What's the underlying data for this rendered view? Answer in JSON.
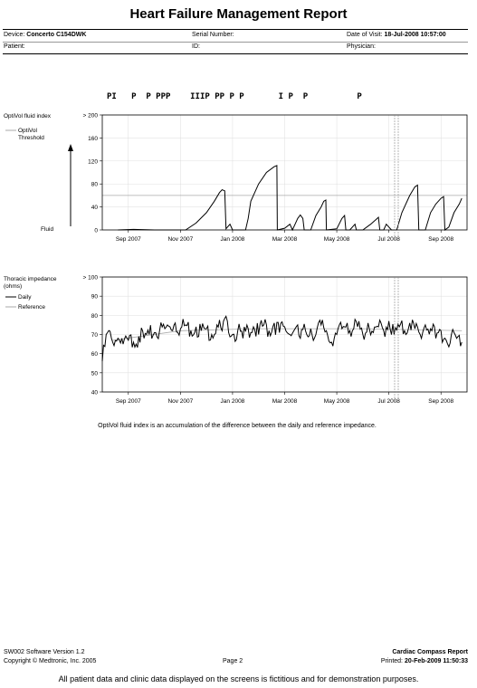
{
  "report": {
    "title": "Heart Failure Management Report",
    "device_label": "Device:",
    "device_value": "Concerto C154DWK",
    "serial_label": "Serial Number:",
    "visit_label": "Date of Visit:",
    "visit_value": "18-Jul-2008  10:57:00",
    "patient_label": "Patient:",
    "id_label": "ID:",
    "physician_label": "Physician:"
  },
  "events_row": "PI   P  P PPP    IIIP PP P P       I P  P          P",
  "footer": {
    "software": "SW002 Software Version 1.2",
    "copyright": "Copyright © Medtronic, Inc. 2005",
    "page": "Page 2",
    "report_name": "Cardiac Compass Report",
    "printed_label": "Printed:",
    "printed_value": "20-Feb-2009 11:50:33",
    "disclaimer": "All patient data and clinic data displayed on the screens is fictitious and for demonstration purposes."
  },
  "caption": "OptiVol fluid index is an accumulation of the difference between the daily and reference impedance.",
  "chart_data": [
    {
      "type": "line",
      "title": "OptiVol fluid index",
      "legend": [
        "OptiVol Threshold"
      ],
      "arrow_label": "Fluid",
      "x_ticks": [
        "Sep 2007",
        "Nov 2007",
        "Jan 2008",
        "Mar 2008",
        "May 2008",
        "Jul 2008",
        "Sep 2008"
      ],
      "y_ticks": [
        "> 200",
        "160",
        "120",
        "80",
        "40",
        "0"
      ],
      "ylim": [
        0,
        200
      ],
      "threshold": 60,
      "series": [
        {
          "points": [
            [
              0.06,
              0
            ],
            [
              0.12,
              1
            ],
            [
              0.2,
              0
            ],
            [
              0.32,
              0
            ],
            [
              0.36,
              12
            ],
            [
              0.4,
              30
            ],
            [
              0.43,
              50
            ],
            [
              0.45,
              65
            ],
            [
              0.46,
              70
            ],
            [
              0.47,
              68
            ],
            [
              0.475,
              2
            ],
            [
              0.49,
              10
            ],
            [
              0.5,
              0
            ],
            [
              0.55,
              0
            ],
            [
              0.56,
              20
            ],
            [
              0.57,
              50
            ],
            [
              0.6,
              80
            ],
            [
              0.63,
              100
            ],
            [
              0.66,
              110
            ],
            [
              0.67,
              112
            ],
            [
              0.672,
              0
            ],
            [
              0.7,
              3
            ],
            [
              0.72,
              10
            ],
            [
              0.73,
              0
            ],
            [
              0.74,
              10
            ],
            [
              0.75,
              20
            ],
            [
              0.76,
              26
            ],
            [
              0.77,
              20
            ],
            [
              0.775,
              0
            ],
            [
              0.8,
              0
            ],
            [
              0.82,
              25
            ],
            [
              0.84,
              40
            ],
            [
              0.85,
              50
            ],
            [
              0.858,
              52
            ],
            [
              0.86,
              0
            ],
            [
              0.9,
              2
            ],
            [
              0.92,
              20
            ],
            [
              0.93,
              25
            ],
            [
              0.935,
              0
            ],
            [
              0.95,
              0
            ],
            [
              0.97,
              10
            ],
            [
              0.975,
              0
            ],
            [
              1.0,
              0
            ],
            [
              1.03,
              10
            ],
            [
              1.05,
              18
            ],
            [
              1.06,
              22
            ],
            [
              1.065,
              0
            ],
            [
              1.08,
              0
            ],
            [
              1.09,
              10
            ],
            [
              1.1,
              5
            ],
            [
              1.11,
              0
            ],
            [
              1.13,
              0
            ],
            [
              1.15,
              30
            ],
            [
              1.18,
              60
            ],
            [
              1.2,
              75
            ],
            [
              1.21,
              78
            ],
            [
              1.215,
              0
            ],
            [
              1.24,
              0
            ],
            [
              1.26,
              30
            ],
            [
              1.28,
              45
            ],
            [
              1.3,
              55
            ],
            [
              1.31,
              58
            ],
            [
              1.315,
              0
            ],
            [
              1.33,
              5
            ],
            [
              1.35,
              30
            ],
            [
              1.37,
              45
            ],
            [
              1.38,
              55
            ]
          ]
        }
      ]
    },
    {
      "type": "line",
      "title": "Thoracic impedance",
      "unit": "(ohms)",
      "legend": [
        "Daily",
        "Reference"
      ],
      "x_ticks": [
        "Sep 2007",
        "Nov 2007",
        "Jan 2008",
        "Mar 2008",
        "May 2008",
        "Jul 2008",
        "Sep 2008"
      ],
      "y_ticks": [
        "> 100",
        "90",
        "80",
        "70",
        "60",
        "50",
        "40"
      ],
      "ylim": [
        40,
        100
      ],
      "series": [
        {
          "name": "Daily",
          "points": [
            [
              0.0,
              56
            ],
            [
              0.02,
              71
            ],
            [
              0.04,
              66
            ],
            [
              0.06,
              68
            ],
            [
              0.08,
              65
            ],
            [
              0.1,
              67
            ],
            [
              0.12,
              66
            ],
            [
              0.14,
              69
            ],
            [
              0.16,
              68
            ],
            [
              0.18,
              70
            ],
            [
              0.2,
              71
            ],
            [
              0.22,
              72
            ],
            [
              0.24,
              73
            ],
            [
              0.26,
              74
            ],
            [
              0.28,
              76
            ],
            [
              0.3,
              73
            ],
            [
              0.32,
              75
            ],
            [
              0.34,
              72
            ],
            [
              0.36,
              74
            ],
            [
              0.38,
              72
            ],
            [
              0.4,
              73
            ],
            [
              0.42,
              70
            ],
            [
              0.44,
              75
            ],
            [
              0.46,
              72
            ],
            [
              0.48,
              77
            ],
            [
              0.5,
              70
            ],
            [
              0.52,
              72
            ],
            [
              0.54,
              68
            ],
            [
              0.56,
              73
            ],
            [
              0.58,
              74
            ],
            [
              0.6,
              70
            ],
            [
              0.62,
              75
            ],
            [
              0.64,
              72
            ],
            [
              0.66,
              76
            ],
            [
              0.68,
              71
            ],
            [
              0.7,
              74
            ],
            [
              0.72,
              70
            ],
            [
              0.74,
              73
            ],
            [
              0.76,
              68
            ],
            [
              0.78,
              72
            ],
            [
              0.8,
              73
            ],
            [
              0.82,
              70
            ],
            [
              0.84,
              75
            ],
            [
              0.86,
              72
            ],
            [
              0.88,
              66
            ],
            [
              0.9,
              70
            ],
            [
              0.92,
              73
            ],
            [
              0.94,
              76
            ],
            [
              0.96,
              72
            ],
            [
              0.98,
              74
            ],
            [
              1.0,
              70
            ],
            [
              1.02,
              76
            ],
            [
              1.04,
              71
            ],
            [
              1.06,
              74
            ],
            [
              1.08,
              72
            ],
            [
              1.1,
              77
            ],
            [
              1.12,
              70
            ],
            [
              1.14,
              74
            ],
            [
              1.16,
              72
            ],
            [
              1.18,
              76
            ],
            [
              1.2,
              73
            ],
            [
              1.22,
              70
            ],
            [
              1.24,
              75
            ],
            [
              1.26,
              73
            ],
            [
              1.28,
              68
            ],
            [
              1.3,
              72
            ],
            [
              1.32,
              67
            ],
            [
              1.34,
              70
            ],
            [
              1.36,
              68
            ],
            [
              1.38,
              66
            ]
          ]
        },
        {
          "name": "Reference",
          "points": [
            [
              0.04,
              67
            ],
            [
              0.3,
              72
            ],
            [
              0.6,
              73
            ],
            [
              1.0,
              73
            ],
            [
              1.38,
              72
            ]
          ]
        }
      ]
    }
  ]
}
